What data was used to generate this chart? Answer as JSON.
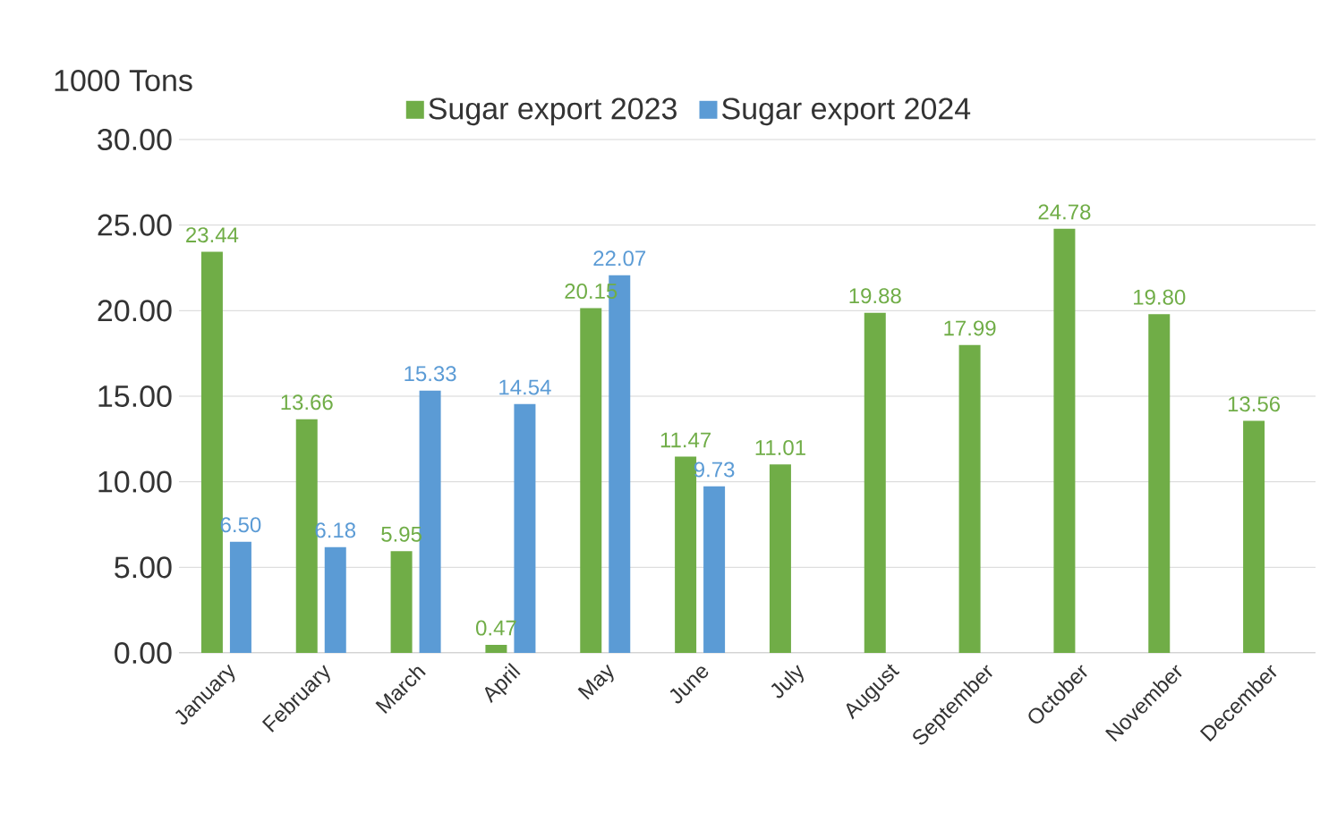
{
  "chart_data": {
    "type": "bar",
    "ylabel": "1000 Tons",
    "categories": [
      "January",
      "February",
      "March",
      "April",
      "May",
      "June",
      "July",
      "August",
      "September",
      "October",
      "November",
      "December"
    ],
    "series": [
      {
        "name": "Sugar export 2023",
        "color": "#70ad47",
        "values": [
          23.44,
          13.66,
          5.95,
          0.47,
          20.15,
          11.47,
          11.01,
          19.88,
          17.99,
          24.78,
          19.8,
          13.56
        ],
        "value_labels": [
          "23.44",
          "13.66",
          "5.95",
          "0.47",
          "20.15",
          "11.47",
          "11.01",
          "19.88",
          "17.99",
          "24.78",
          "19.80",
          "13.56"
        ]
      },
      {
        "name": "Sugar export 2024",
        "color": "#5b9bd5",
        "values": [
          6.5,
          6.18,
          15.33,
          14.54,
          22.07,
          9.73,
          null,
          null,
          null,
          null,
          null,
          null
        ],
        "value_labels": [
          "6.50",
          "6.18",
          "15.33",
          "14.54",
          "22.07",
          "9.73",
          null,
          null,
          null,
          null,
          null,
          null
        ]
      }
    ],
    "ylim": [
      0,
      30
    ],
    "yticks": [
      {
        "value": 0,
        "label": "0.00"
      },
      {
        "value": 5,
        "label": "5.00"
      },
      {
        "value": 10,
        "label": "10.00"
      },
      {
        "value": 15,
        "label": "15.00"
      },
      {
        "value": 20,
        "label": "20.00"
      },
      {
        "value": 25,
        "label": "25.00"
      },
      {
        "value": 30,
        "label": "30.00"
      }
    ],
    "grid": "y",
    "legend": "top"
  }
}
